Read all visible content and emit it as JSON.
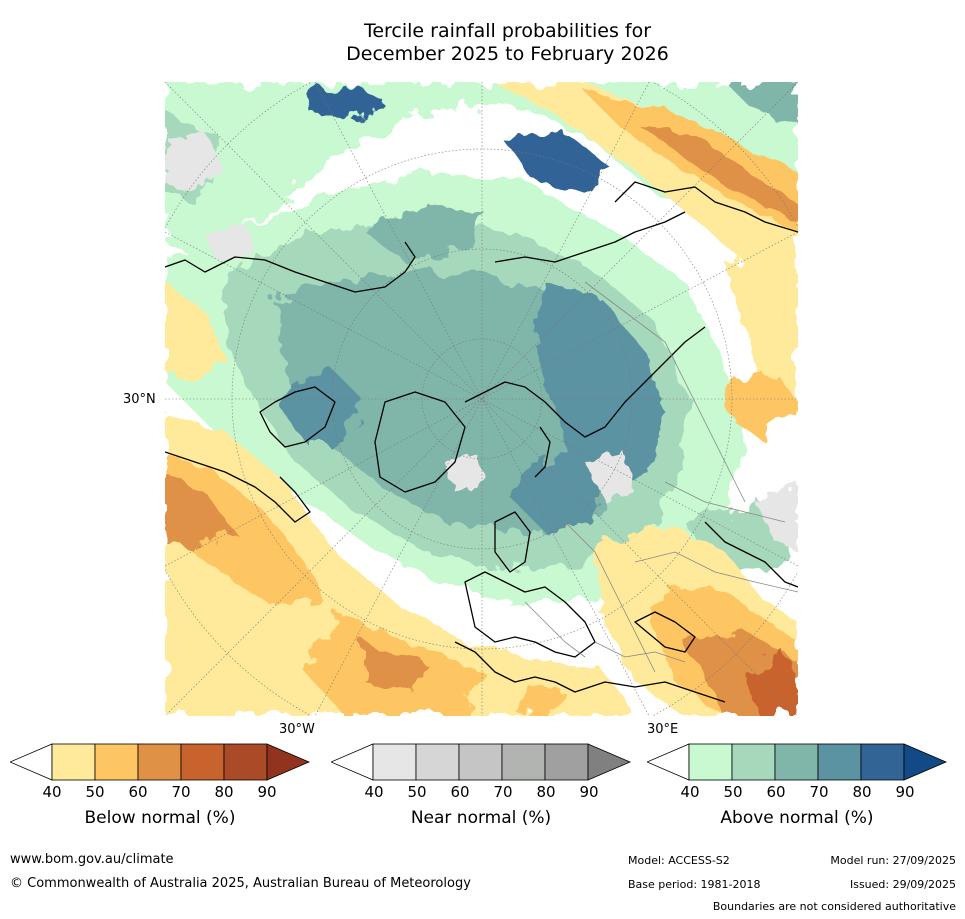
{
  "title": {
    "line1": "Tercile rainfall probabilities for",
    "line2": "December 2025 to February 2026"
  },
  "map": {
    "projection": "north-polar-stereographic",
    "labels": {
      "lat_30N": "30°N",
      "lon_30W": "30°W",
      "lon_30E": "30°E"
    },
    "layers": [
      "below-normal-shading",
      "near-normal-shading",
      "above-normal-shading",
      "coastlines",
      "country-boundaries",
      "graticule"
    ]
  },
  "legends": [
    {
      "id": "below",
      "title": "Below normal (%)",
      "ticks": [
        "40",
        "50",
        "60",
        "70",
        "80",
        "90"
      ],
      "colors": [
        "#ffffff",
        "#ffe99b",
        "#fdc663",
        "#df9146",
        "#c9632d",
        "#ab4a27",
        "#92331f"
      ]
    },
    {
      "id": "near",
      "title": "Near normal (%)",
      "ticks": [
        "40",
        "50",
        "60",
        "70",
        "80",
        "90"
      ],
      "colors": [
        "#ffffff",
        "#e6e6e6",
        "#d6d6d6",
        "#c5c5c5",
        "#b2b4b2",
        "#a0a0a0",
        "#808080"
      ]
    },
    {
      "id": "above",
      "title": "Above normal (%)",
      "ticks": [
        "40",
        "50",
        "60",
        "70",
        "80",
        "90"
      ],
      "colors": [
        "#ffffff",
        "#c8f9d1",
        "#a6d8bb",
        "#80b5aa",
        "#5c93a2",
        "#326496",
        "#114a86"
      ]
    }
  ],
  "footer": {
    "website": "www.bom.gov.au/climate",
    "copyright": "© Commonwealth of Australia 2025, Australian Bureau of Meteorology",
    "model": "Model: ACCESS-S2",
    "base_period": "Base period: 1981-2018",
    "model_run": "Model run: 27/09/2025",
    "issued": "Issued: 29/09/2025",
    "disclaimer": "Boundaries are not considered authoritative"
  }
}
